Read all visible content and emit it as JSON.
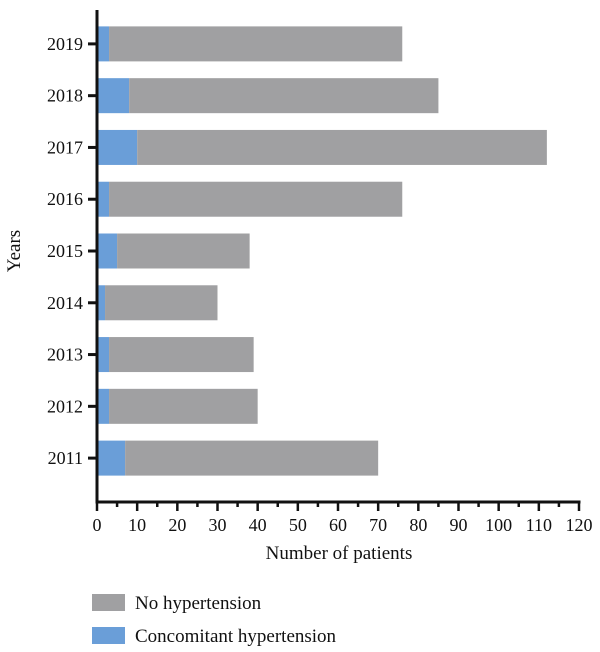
{
  "chart_data": {
    "type": "bar",
    "orientation": "horizontal",
    "stacked": true,
    "categories": [
      "2019",
      "2018",
      "2017",
      "2016",
      "2015",
      "2014",
      "2013",
      "2012",
      "2011"
    ],
    "series": [
      {
        "name": "Concomitant hypertension",
        "color": "#6a9ed8",
        "values": [
          3,
          8,
          10,
          3,
          5,
          2,
          3,
          3,
          7
        ]
      },
      {
        "name": "No hypertension",
        "color": "#a0a0a2",
        "values": [
          73,
          77,
          102,
          73,
          33,
          28,
          36,
          37,
          63
        ]
      }
    ],
    "xlabel": "Number of patients",
    "ylabel": "Years",
    "xlim": [
      0,
      120
    ],
    "xticks": [
      0,
      10,
      20,
      30,
      40,
      50,
      60,
      70,
      80,
      90,
      100,
      110,
      120
    ],
    "grid": false,
    "legend_position": "bottom-left",
    "legend_order": [
      "No hypertension",
      "Concomitant hypertension"
    ]
  }
}
